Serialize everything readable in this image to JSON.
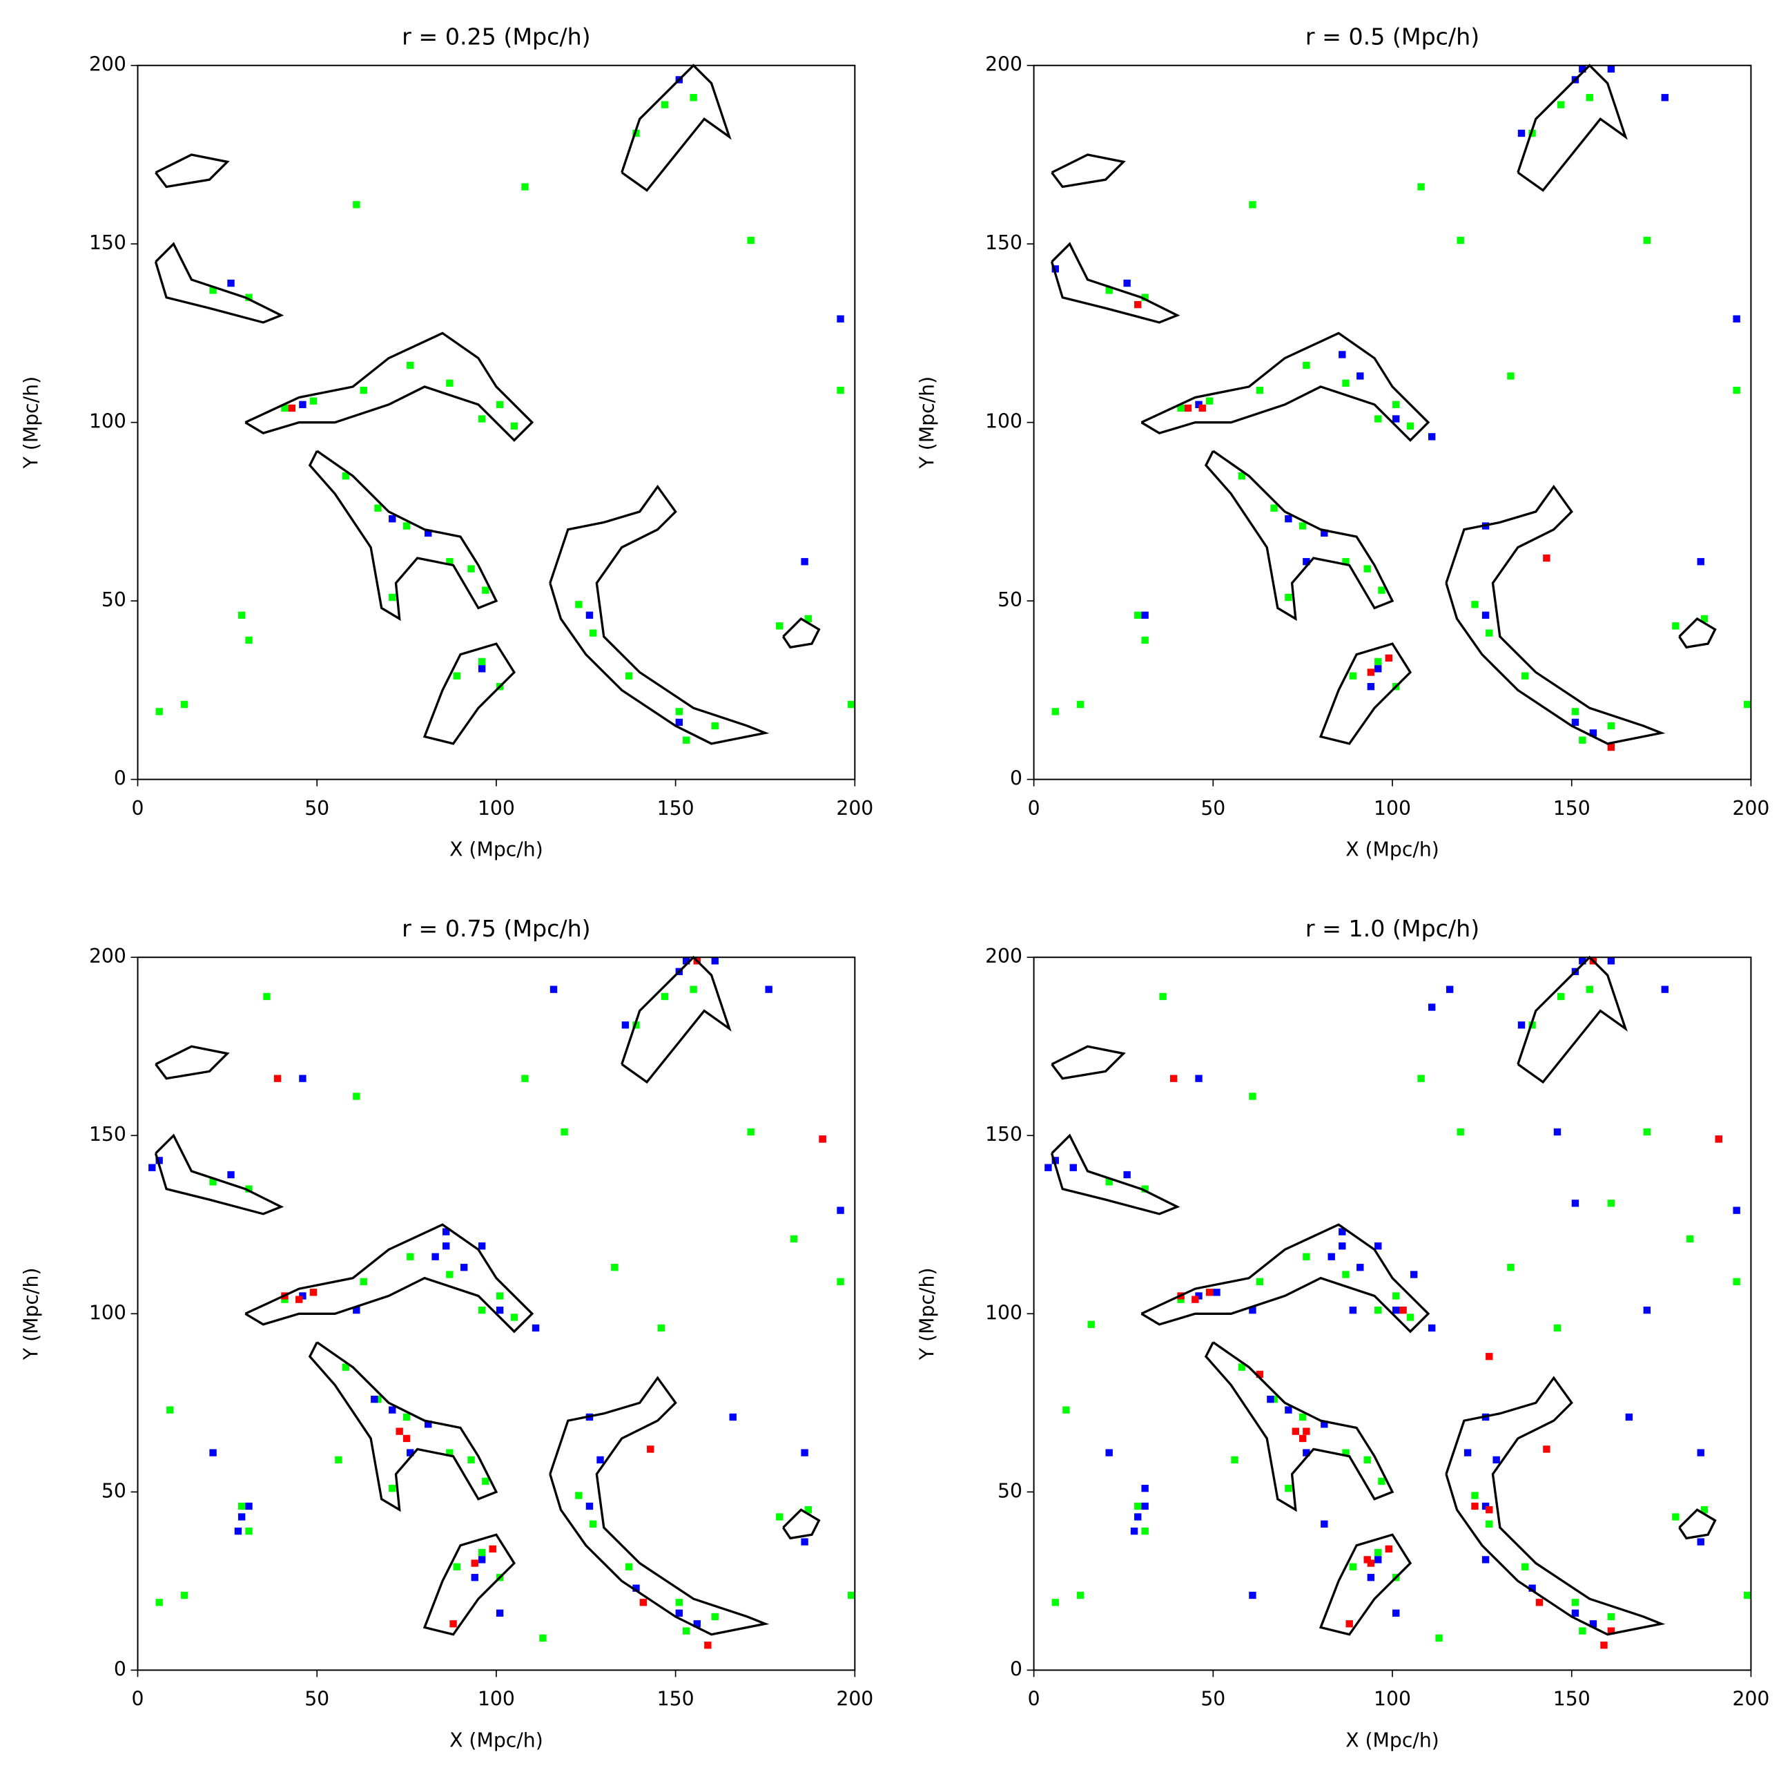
{
  "chart_data": [
    {
      "type": "heatmap",
      "title": "r = 0.25 (Mpc/h)",
      "xlabel": "X (Mpc/h)",
      "ylabel": "Y (Mpc/h)",
      "xlim": [
        0,
        200
      ],
      "ylim": [
        0,
        200
      ],
      "xticks": [
        0,
        50,
        100,
        150,
        200
      ],
      "yticks": [
        0,
        50,
        100,
        150,
        200
      ],
      "series": [
        {
          "color": "#00ff00",
          "x": [
            40,
            48,
            62,
            75,
            86,
            95,
            104,
            100,
            57,
            66,
            74,
            86,
            92,
            70,
            96,
            122,
            126,
            136,
            150,
            160,
            152,
            138,
            146,
            154,
            20,
            30,
            5,
            12,
            28,
            30,
            88,
            95,
            100,
            178,
            186,
            198,
            60,
            107,
            170,
            195
          ],
          "y": [
            103,
            105,
            108,
            115,
            110,
            100,
            98,
            104,
            84,
            75,
            70,
            60,
            58,
            50,
            52,
            48,
            40,
            28,
            18,
            14,
            10,
            180,
            188,
            190,
            136,
            134,
            18,
            20,
            45,
            38,
            28,
            32,
            25,
            42,
            44,
            20,
            160,
            165,
            150,
            108
          ]
        },
        {
          "color": "#0000ff",
          "x": [
            45,
            70,
            80,
            125,
            150,
            150,
            25,
            95,
            185,
            195
          ],
          "y": [
            104,
            72,
            68,
            45,
            15,
            195,
            138,
            30,
            60,
            128
          ]
        },
        {
          "color": "#ff0000",
          "x": [
            42
          ],
          "y": [
            103
          ]
        }
      ]
    },
    {
      "type": "heatmap",
      "title": "r = 0.5 (Mpc/h)",
      "xlabel": "X (Mpc/h)",
      "ylabel": "Y (Mpc/h)",
      "xlim": [
        0,
        200
      ],
      "ylim": [
        0,
        200
      ],
      "xticks": [
        0,
        50,
        100,
        150,
        200
      ],
      "yticks": [
        0,
        50,
        100,
        150,
        200
      ],
      "series": [
        {
          "color": "#00ff00",
          "x": [
            40,
            48,
            62,
            75,
            86,
            95,
            104,
            100,
            57,
            66,
            74,
            86,
            92,
            70,
            96,
            122,
            126,
            136,
            150,
            160,
            152,
            138,
            146,
            154,
            20,
            30,
            5,
            12,
            28,
            30,
            88,
            95,
            100,
            178,
            186,
            198,
            60,
            107,
            170,
            195,
            118,
            132
          ],
          "y": [
            103,
            105,
            108,
            115,
            110,
            100,
            98,
            104,
            84,
            75,
            70,
            60,
            58,
            50,
            52,
            48,
            40,
            28,
            18,
            14,
            10,
            180,
            188,
            190,
            136,
            134,
            18,
            20,
            45,
            38,
            28,
            32,
            25,
            42,
            44,
            20,
            160,
            165,
            150,
            108,
            150,
            112
          ]
        },
        {
          "color": "#0000ff",
          "x": [
            45,
            70,
            80,
            125,
            150,
            150,
            25,
            95,
            185,
            195,
            85,
            90,
            100,
            110,
            125,
            135,
            160,
            152,
            5,
            30,
            75,
            93,
            155,
            175
          ],
          "y": [
            104,
            72,
            68,
            45,
            15,
            195,
            138,
            30,
            60,
            128,
            118,
            112,
            100,
            95,
            70,
            180,
            198,
            198,
            142,
            45,
            60,
            25,
            12,
            190
          ]
        },
        {
          "color": "#ff0000",
          "x": [
            42,
            46,
            93,
            98,
            142,
            160,
            28
          ],
          "y": [
            103,
            103,
            29,
            33,
            61,
            8,
            132
          ]
        }
      ]
    },
    {
      "type": "heatmap",
      "title": "r = 0.75 (Mpc/h)",
      "xlabel": "X (Mpc/h)",
      "ylabel": "Y (Mpc/h)",
      "xlim": [
        0,
        200
      ],
      "ylim": [
        0,
        200
      ],
      "xticks": [
        0,
        50,
        100,
        150,
        200
      ],
      "yticks": [
        0,
        50,
        100,
        150,
        200
      ],
      "series": [
        {
          "color": "#00ff00",
          "x": [
            40,
            48,
            62,
            75,
            86,
            95,
            104,
            100,
            57,
            66,
            74,
            86,
            92,
            70,
            96,
            122,
            126,
            136,
            150,
            160,
            152,
            138,
            146,
            154,
            20,
            30,
            5,
            12,
            28,
            30,
            88,
            95,
            100,
            178,
            186,
            198,
            60,
            107,
            170,
            195,
            118,
            132,
            8,
            55,
            145,
            182,
            112,
            35
          ],
          "y": [
            103,
            105,
            108,
            115,
            110,
            100,
            98,
            104,
            84,
            75,
            70,
            60,
            58,
            50,
            52,
            48,
            40,
            28,
            18,
            14,
            10,
            180,
            188,
            190,
            136,
            134,
            18,
            20,
            45,
            38,
            28,
            32,
            25,
            42,
            44,
            20,
            160,
            165,
            150,
            108,
            150,
            112,
            72,
            58,
            95,
            120,
            8,
            188
          ]
        },
        {
          "color": "#0000ff",
          "x": [
            45,
            70,
            80,
            125,
            150,
            150,
            25,
            95,
            185,
            195,
            85,
            90,
            100,
            110,
            125,
            135,
            160,
            152,
            5,
            30,
            75,
            93,
            155,
            175,
            85,
            95,
            82,
            60,
            28,
            27,
            65,
            128,
            138,
            165,
            190,
            3,
            45,
            115,
            185,
            100,
            20
          ],
          "y": [
            104,
            72,
            68,
            45,
            15,
            195,
            138,
            30,
            60,
            128,
            118,
            112,
            100,
            95,
            70,
            180,
            198,
            198,
            142,
            45,
            60,
            25,
            12,
            190,
            122,
            118,
            115,
            100,
            42,
            38,
            75,
            58,
            22,
            70,
            148,
            140,
            165,
            190,
            35,
            15,
            60
          ]
        },
        {
          "color": "#ff0000",
          "x": [
            40,
            44,
            48,
            72,
            74,
            93,
            98,
            87,
            142,
            158,
            140,
            190,
            155,
            38
          ],
          "y": [
            104,
            103,
            105,
            66,
            64,
            29,
            33,
            12,
            61,
            6,
            18,
            148,
            198,
            165
          ]
        }
      ]
    },
    {
      "type": "heatmap",
      "title": "r = 1.0 (Mpc/h)",
      "xlabel": "X (Mpc/h)",
      "ylabel": "Y (Mpc/h)",
      "xlim": [
        0,
        200
      ],
      "ylim": [
        0,
        200
      ],
      "xticks": [
        0,
        50,
        100,
        150,
        200
      ],
      "yticks": [
        0,
        50,
        100,
        150,
        200
      ],
      "series": [
        {
          "color": "#00ff00",
          "x": [
            40,
            48,
            62,
            75,
            86,
            95,
            104,
            100,
            57,
            66,
            74,
            86,
            92,
            70,
            96,
            122,
            126,
            136,
            150,
            160,
            152,
            138,
            146,
            154,
            20,
            30,
            5,
            12,
            28,
            30,
            88,
            95,
            100,
            178,
            186,
            198,
            60,
            107,
            170,
            195,
            118,
            132,
            8,
            55,
            145,
            182,
            112,
            35,
            160,
            15
          ],
          "y": [
            103,
            105,
            108,
            115,
            110,
            100,
            98,
            104,
            84,
            75,
            70,
            60,
            58,
            50,
            52,
            48,
            40,
            28,
            18,
            14,
            10,
            180,
            188,
            190,
            136,
            134,
            18,
            20,
            45,
            38,
            28,
            32,
            25,
            42,
            44,
            20,
            160,
            165,
            150,
            108,
            150,
            112,
            72,
            58,
            95,
            120,
            8,
            188,
            130,
            96
          ]
        },
        {
          "color": "#0000ff",
          "x": [
            45,
            70,
            80,
            125,
            150,
            150,
            25,
            95,
            185,
            195,
            85,
            90,
            100,
            110,
            125,
            135,
            160,
            152,
            5,
            30,
            75,
            93,
            155,
            175,
            85,
            95,
            82,
            60,
            28,
            27,
            65,
            128,
            138,
            165,
            190,
            3,
            45,
            115,
            185,
            100,
            20,
            50,
            88,
            105,
            10,
            30,
            80,
            120,
            125,
            145,
            170,
            60,
            110,
            150
          ],
          "y": [
            104,
            72,
            68,
            45,
            15,
            195,
            138,
            30,
            60,
            128,
            118,
            112,
            100,
            95,
            70,
            180,
            198,
            198,
            142,
            45,
            60,
            25,
            12,
            190,
            122,
            118,
            115,
            100,
            42,
            38,
            75,
            58,
            22,
            70,
            148,
            140,
            165,
            190,
            35,
            15,
            60,
            105,
            100,
            110,
            140,
            50,
            40,
            60,
            30,
            150,
            100,
            20,
            185,
            130
          ]
        },
        {
          "color": "#ff0000",
          "x": [
            40,
            44,
            48,
            72,
            74,
            93,
            98,
            87,
            142,
            158,
            140,
            190,
            155,
            38,
            102,
            126,
            122,
            126,
            75,
            92,
            160,
            62
          ],
          "y": [
            104,
            103,
            105,
            66,
            64,
            29,
            33,
            12,
            61,
            6,
            18,
            148,
            198,
            165,
            100,
            87,
            45,
            44,
            66,
            30,
            10,
            82
          ]
        }
      ]
    }
  ],
  "contours": [
    {
      "x": [
        30,
        45,
        60,
        70,
        85,
        95,
        100,
        110,
        105,
        95,
        80,
        70,
        55,
        45,
        35,
        30
      ],
      "y": [
        100,
        107,
        110,
        118,
        125,
        118,
        110,
        100,
        95,
        105,
        110,
        105,
        100,
        100,
        97,
        100
      ]
    },
    {
      "x": [
        50,
        60,
        70,
        80,
        90,
        95,
        100,
        95,
        88,
        78,
        72,
        73,
        68,
        65,
        55,
        48,
        50
      ],
      "y": [
        92,
        85,
        75,
        70,
        68,
        60,
        50,
        48,
        60,
        62,
        55,
        45,
        48,
        65,
        80,
        88,
        92
      ]
    },
    {
      "x": [
        115,
        120,
        130,
        140,
        145,
        150,
        145,
        135,
        128,
        130,
        140,
        155,
        170,
        175,
        160,
        150,
        135,
        125,
        118,
        115
      ],
      "y": [
        55,
        70,
        72,
        75,
        82,
        75,
        70,
        65,
        55,
        40,
        30,
        20,
        15,
        13,
        10,
        15,
        25,
        35,
        45,
        55
      ]
    },
    {
      "x": [
        135,
        140,
        150,
        155,
        160,
        165,
        158,
        150,
        142,
        135
      ],
      "y": [
        170,
        185,
        195,
        200,
        195,
        180,
        185,
        175,
        165,
        170
      ]
    },
    {
      "x": [
        5,
        10,
        15,
        30,
        40,
        35,
        20,
        8,
        5
      ],
      "y": [
        145,
        150,
        140,
        135,
        130,
        128,
        132,
        135,
        145
      ]
    },
    {
      "x": [
        180,
        185,
        190,
        188,
        182,
        180
      ],
      "y": [
        40,
        45,
        42,
        38,
        37,
        40
      ]
    },
    {
      "x": [
        85,
        90,
        100,
        105,
        95,
        88,
        80,
        85
      ],
      "y": [
        25,
        35,
        38,
        30,
        20,
        10,
        12,
        25
      ]
    },
    {
      "x": [
        5,
        15,
        25,
        20,
        8,
        5
      ],
      "y": [
        170,
        175,
        173,
        168,
        166,
        170
      ]
    }
  ]
}
